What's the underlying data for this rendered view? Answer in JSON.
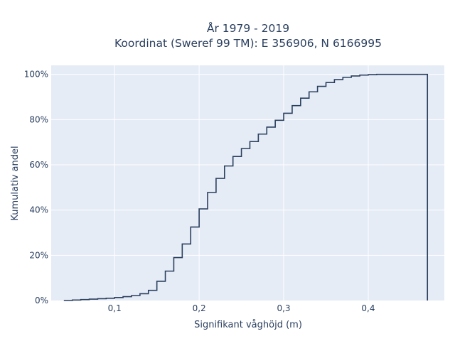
{
  "chart_data": {
    "type": "line",
    "line_shape": "step",
    "title_line1": "År 1979 - 2019",
    "title_line2": "Koordinat (Sweref 99 TM): E 356906, N 6166995",
    "xlabel": "Signifikant våghöjd (m)",
    "ylabel": "Kumulativ andel",
    "xlim": [
      0.025,
      0.49
    ],
    "ylim": [
      0,
      1.04
    ],
    "xticks": [
      {
        "value": 0.1,
        "label": "0,1"
      },
      {
        "value": 0.2,
        "label": "0,2"
      },
      {
        "value": 0.3,
        "label": "0,3"
      },
      {
        "value": 0.4,
        "label": "0,4"
      }
    ],
    "yticks": [
      {
        "value": 0.0,
        "label": "0%"
      },
      {
        "value": 0.2,
        "label": "20%"
      },
      {
        "value": 0.4,
        "label": "40%"
      },
      {
        "value": 0.6,
        "label": "60%"
      },
      {
        "value": 0.8,
        "label": "80%"
      },
      {
        "value": 1.0,
        "label": "100%"
      }
    ],
    "grid": true,
    "colors": {
      "plot_bg": "#e5ecf6",
      "grid": "#ffffff",
      "line": "#2a3f5f",
      "text": "#2a3f5f"
    },
    "x": [
      0.04,
      0.05,
      0.06,
      0.07,
      0.08,
      0.09,
      0.1,
      0.11,
      0.12,
      0.13,
      0.14,
      0.15,
      0.16,
      0.17,
      0.18,
      0.19,
      0.2,
      0.21,
      0.22,
      0.23,
      0.24,
      0.25,
      0.26,
      0.27,
      0.28,
      0.29,
      0.3,
      0.31,
      0.32,
      0.33,
      0.34,
      0.35,
      0.36,
      0.37,
      0.38,
      0.39,
      0.4,
      0.41,
      0.42,
      0.43,
      0.44,
      0.45,
      0.46,
      0.47
    ],
    "y": [
      0.0,
      0.002,
      0.004,
      0.006,
      0.008,
      0.01,
      0.013,
      0.017,
      0.022,
      0.03,
      0.045,
      0.085,
      0.13,
      0.19,
      0.25,
      0.325,
      0.405,
      0.478,
      0.54,
      0.595,
      0.637,
      0.672,
      0.703,
      0.736,
      0.767,
      0.797,
      0.828,
      0.862,
      0.895,
      0.923,
      0.947,
      0.964,
      0.977,
      0.987,
      0.993,
      0.997,
      0.999,
      1.0,
      1.0,
      1.0,
      1.0,
      1.0,
      1.0,
      0.0
    ]
  }
}
